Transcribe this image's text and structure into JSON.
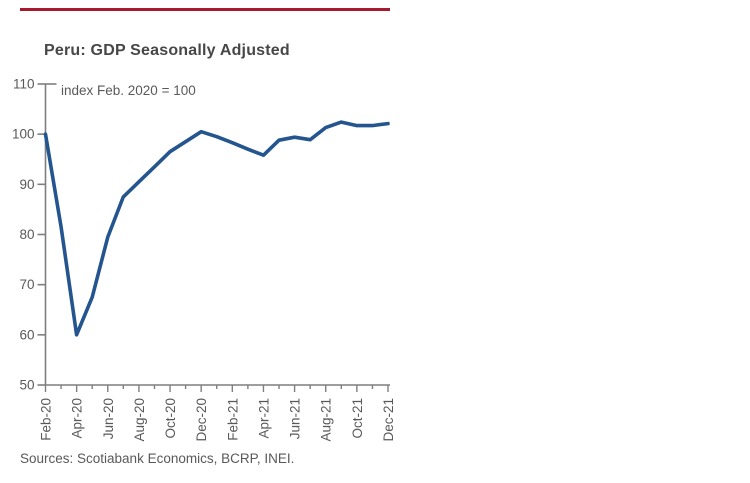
{
  "header": {
    "title": "Peru: GDP Seasonally Adjusted"
  },
  "chart": {
    "note": "index Feb. 2020 = 100"
  },
  "footer": {
    "sources": "Sources: Scotiabank Economics, BCRP, INEI."
  },
  "colors": {
    "accent_rule": "#A6192E",
    "series_line": "#24558E",
    "axis": "#7F7F7F",
    "tick": "#7F7F7F",
    "label_text": "#595959",
    "title_text": "#474747"
  },
  "chart_data": {
    "type": "line",
    "title": "Peru: GDP Seasonally Adjusted",
    "subtitle": "index Feb. 2020 = 100",
    "categories": [
      "Feb-20",
      "Mar-20",
      "Apr-20",
      "May-20",
      "Jun-20",
      "Jul-20",
      "Aug-20",
      "Sep-20",
      "Oct-20",
      "Nov-20",
      "Dec-20",
      "Jan-21",
      "Feb-21",
      "Mar-21",
      "Apr-21",
      "May-21",
      "Jun-21",
      "Jul-21",
      "Aug-21",
      "Sep-21",
      "Oct-21",
      "Nov-21",
      "Dec-21"
    ],
    "series": [
      {
        "name": "Peru GDP seasonally adjusted index (Feb 2020 = 100)",
        "values": [
          100,
          81.5,
          60,
          67.5,
          79.5,
          87.5,
          90.5,
          93.5,
          96.5,
          98.5,
          100.5,
          99.5,
          98.3,
          97,
          95.8,
          98.8,
          99.4,
          98.9,
          101.3,
          102.4,
          101.7,
          101.7,
          102.1
        ]
      }
    ],
    "xlabel": "",
    "ylabel": "",
    "ylim": [
      50,
      110
    ],
    "ytick_step": 10,
    "yticks": [
      50,
      60,
      70,
      80,
      90,
      100,
      110
    ],
    "xtick_label_every": 2,
    "grid": false,
    "legend": false
  }
}
